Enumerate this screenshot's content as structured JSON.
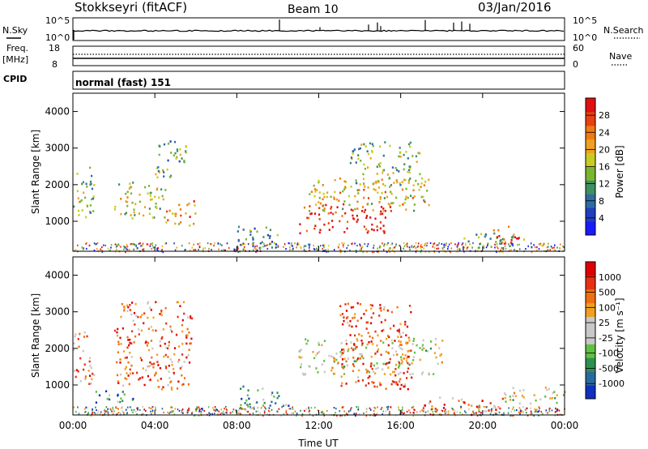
{
  "header": {
    "station": "Stokkseyri (fitACF)",
    "beam": "Beam 10",
    "date": "03/Jan/2016"
  },
  "noise_panel": {
    "left_label": "N.Sky",
    "right_label": "N.Search",
    "y_top": "10^5",
    "y_bottom": "10^0"
  },
  "freq_panel": {
    "left_label_1": "Freq.",
    "left_label_2": "[MHz]",
    "right_label": "Nave",
    "y_top": "18",
    "y_bottom": "8",
    "r_top": "60",
    "r_bottom": "0"
  },
  "cpid": {
    "label": "CPID",
    "value": "normal (fast) 151"
  },
  "chart_data": [
    {
      "type": "heatmap",
      "title": "",
      "xlabel": "",
      "ylabel": "Slant Range [km]",
      "x_ticks": [
        "00:00",
        "04:00",
        "08:00",
        "12:00",
        "16:00",
        "20:00",
        "00:00"
      ],
      "y_ticks": [
        1000,
        2000,
        3000,
        4000
      ],
      "ylim": [
        180,
        4500
      ],
      "colorbar": {
        "label": "Power [dB]",
        "ticks": [
          "4",
          "8",
          "12",
          "16",
          "20",
          "24",
          "28"
        ],
        "colors": [
          "#1a1aff",
          "#1f3fbf",
          "#2f6aa3",
          "#3f8f60",
          "#7ab530",
          "#c9cc20",
          "#f0a020",
          "#f07a10",
          "#e84010",
          "#e01010"
        ]
      },
      "regions": [
        {
          "t0": 0.0,
          "t1": 1.0,
          "r0": 1000,
          "r1": 2500,
          "level": 0.45
        },
        {
          "t0": 2.0,
          "t1": 4.5,
          "r0": 1100,
          "r1": 2100,
          "level": 0.5
        },
        {
          "t0": 4.0,
          "t1": 5.5,
          "r0": 2200,
          "r1": 3300,
          "level": 0.4
        },
        {
          "t0": 4.5,
          "t1": 6.0,
          "r0": 900,
          "r1": 1600,
          "level": 0.7
        },
        {
          "t0": 8.0,
          "t1": 10.0,
          "r0": 300,
          "r1": 900,
          "level": 0.35
        },
        {
          "t0": 11.0,
          "t1": 15.5,
          "r0": 700,
          "r1": 1500,
          "level": 0.95
        },
        {
          "t0": 11.5,
          "t1": 17.5,
          "r0": 1300,
          "r1": 2200,
          "level": 0.6
        },
        {
          "t0": 13.5,
          "t1": 17.0,
          "r0": 2000,
          "r1": 3200,
          "level": 0.45
        },
        {
          "t0": 19.0,
          "t1": 22.0,
          "r0": 300,
          "r1": 700,
          "level": 0.4
        },
        {
          "t0": 20.5,
          "t1": 21.8,
          "r0": 400,
          "r1": 900,
          "level": 0.85
        }
      ]
    },
    {
      "type": "heatmap",
      "title": "",
      "xlabel": "Time UT",
      "ylabel": "Slant Range [km]",
      "x_ticks": [
        "00:00",
        "04:00",
        "08:00",
        "12:00",
        "16:00",
        "20:00",
        "00:00"
      ],
      "y_ticks": [
        1000,
        2000,
        3000,
        4000
      ],
      "ylim": [
        180,
        4500
      ],
      "colorbar": {
        "label": "Velocity [m s⁻¹]",
        "ticks": [
          "1000",
          "500",
          "100",
          "25",
          "-25",
          "-100",
          "-500",
          "-1000"
        ],
        "colors": [
          "#1030c0",
          "#2a6a9a",
          "#2f8f4f",
          "#60c040",
          "#c8c8c8",
          "#c8c8c8",
          "#f0a020",
          "#f07010",
          "#e83010",
          "#e00000"
        ]
      },
      "regions": [
        {
          "t0": 0.0,
          "t1": 1.0,
          "r0": 1000,
          "r1": 2500,
          "level": 0.7
        },
        {
          "t0": 2.0,
          "t1": 5.8,
          "r0": 900,
          "r1": 3300,
          "level": 0.75
        },
        {
          "t0": 1.0,
          "t1": 3.0,
          "r0": 500,
          "r1": 900,
          "level": 0.25
        },
        {
          "t0": 8.0,
          "t1": 10.5,
          "r0": 400,
          "r1": 1000,
          "level": 0.3
        },
        {
          "t0": 11.0,
          "t1": 18.0,
          "r0": 1300,
          "r1": 2300,
          "level": 0.5
        },
        {
          "t0": 13.0,
          "t1": 16.5,
          "r0": 900,
          "r1": 3300,
          "level": 0.8
        },
        {
          "t0": 17.0,
          "t1": 21.0,
          "r0": 200,
          "r1": 700,
          "level": 0.75
        },
        {
          "t0": 21.0,
          "t1": 24.0,
          "r0": 500,
          "r1": 1000,
          "level": 0.5
        }
      ]
    }
  ]
}
